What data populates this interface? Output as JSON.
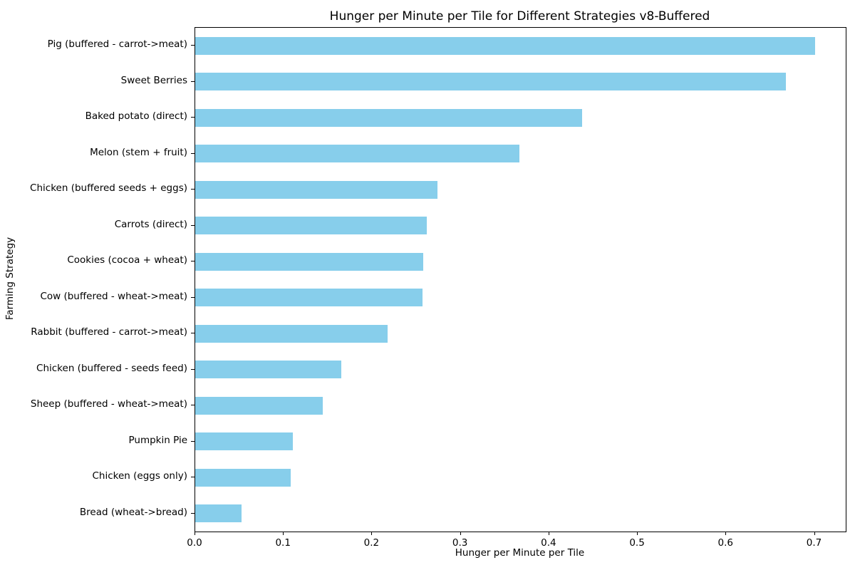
{
  "figure": {
    "background": "#ffffff",
    "text_color": "#000000",
    "spine_color": "#000000"
  },
  "chart_data": {
    "type": "bar",
    "orientation": "horizontal",
    "title": "Hunger per Minute per Tile for Different Strategies v8-Buffered",
    "xlabel": "Hunger per Minute per Tile",
    "ylabel": "Farming Strategy",
    "categories": [
      "Pig (buffered - carrot->meat)",
      "Sweet Berries",
      "Baked potato (direct)",
      "Melon (stem + fruit)",
      "Chicken (buffered seeds + eggs)",
      "Carrots (direct)",
      "Cookies (cocoa + wheat)",
      "Cow (buffered - wheat->meat)",
      "Rabbit (buffered - carrot->meat)",
      "Chicken (buffered - seeds feed)",
      "Sheep (buffered - wheat->meat)",
      "Pumpkin Pie",
      "Chicken (eggs only)",
      "Bread (wheat->bread)"
    ],
    "values": [
      0.7,
      0.667,
      0.437,
      0.366,
      0.274,
      0.262,
      0.258,
      0.257,
      0.217,
      0.165,
      0.144,
      0.11,
      0.108,
      0.052
    ],
    "xlim": [
      0,
      0.735
    ],
    "xticks": [
      0.0,
      0.1,
      0.2,
      0.3,
      0.4,
      0.5,
      0.6,
      0.7
    ],
    "bar_color": "#87CEEB",
    "grid": false,
    "legend_position": "none",
    "sort_order": "descending"
  }
}
